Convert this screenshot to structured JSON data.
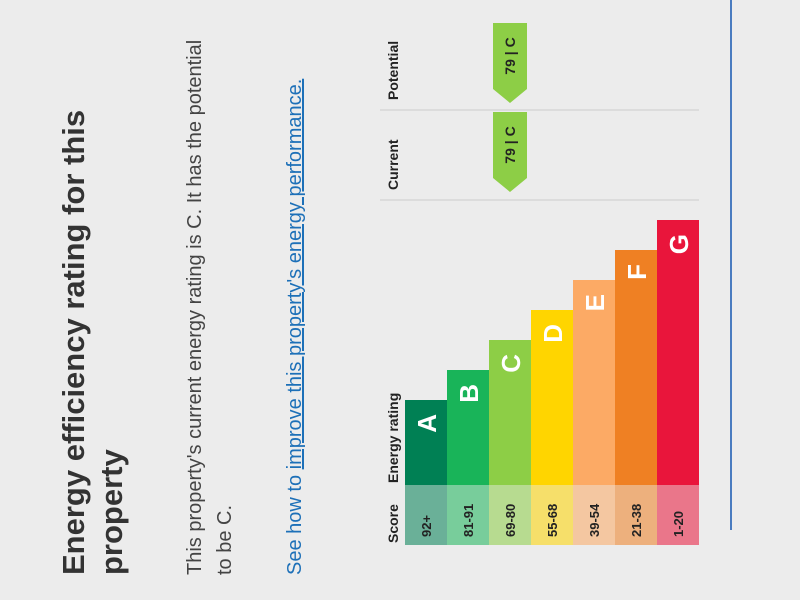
{
  "page": {
    "title": "Energy efficiency rating for this property",
    "description": "This property's current energy rating is C. It has the potential to be C.",
    "link_prefix": "See how to ",
    "link": "improve this property's energy performance.",
    "table": {
      "headers": {
        "score": "Score",
        "rating": "Energy rating",
        "current": "Current",
        "potential": "Potential"
      },
      "bands": [
        {
          "score": "92+",
          "letter": "A",
          "color": "#008054"
        },
        {
          "score": "81-91",
          "letter": "B",
          "color": "#19b459"
        },
        {
          "score": "69-80",
          "letter": "C",
          "color": "#8dce46"
        },
        {
          "score": "55-68",
          "letter": "D",
          "color": "#ffd500"
        },
        {
          "score": "39-54",
          "letter": "E",
          "color": "#fcaa65"
        },
        {
          "score": "21-38",
          "letter": "F",
          "color": "#ef8023"
        },
        {
          "score": "1-20",
          "letter": "G",
          "color": "#e9153b"
        }
      ],
      "current": {
        "band": "C",
        "label": "79 | C"
      },
      "potential": {
        "band": "C",
        "label": "79 | C"
      }
    }
  }
}
